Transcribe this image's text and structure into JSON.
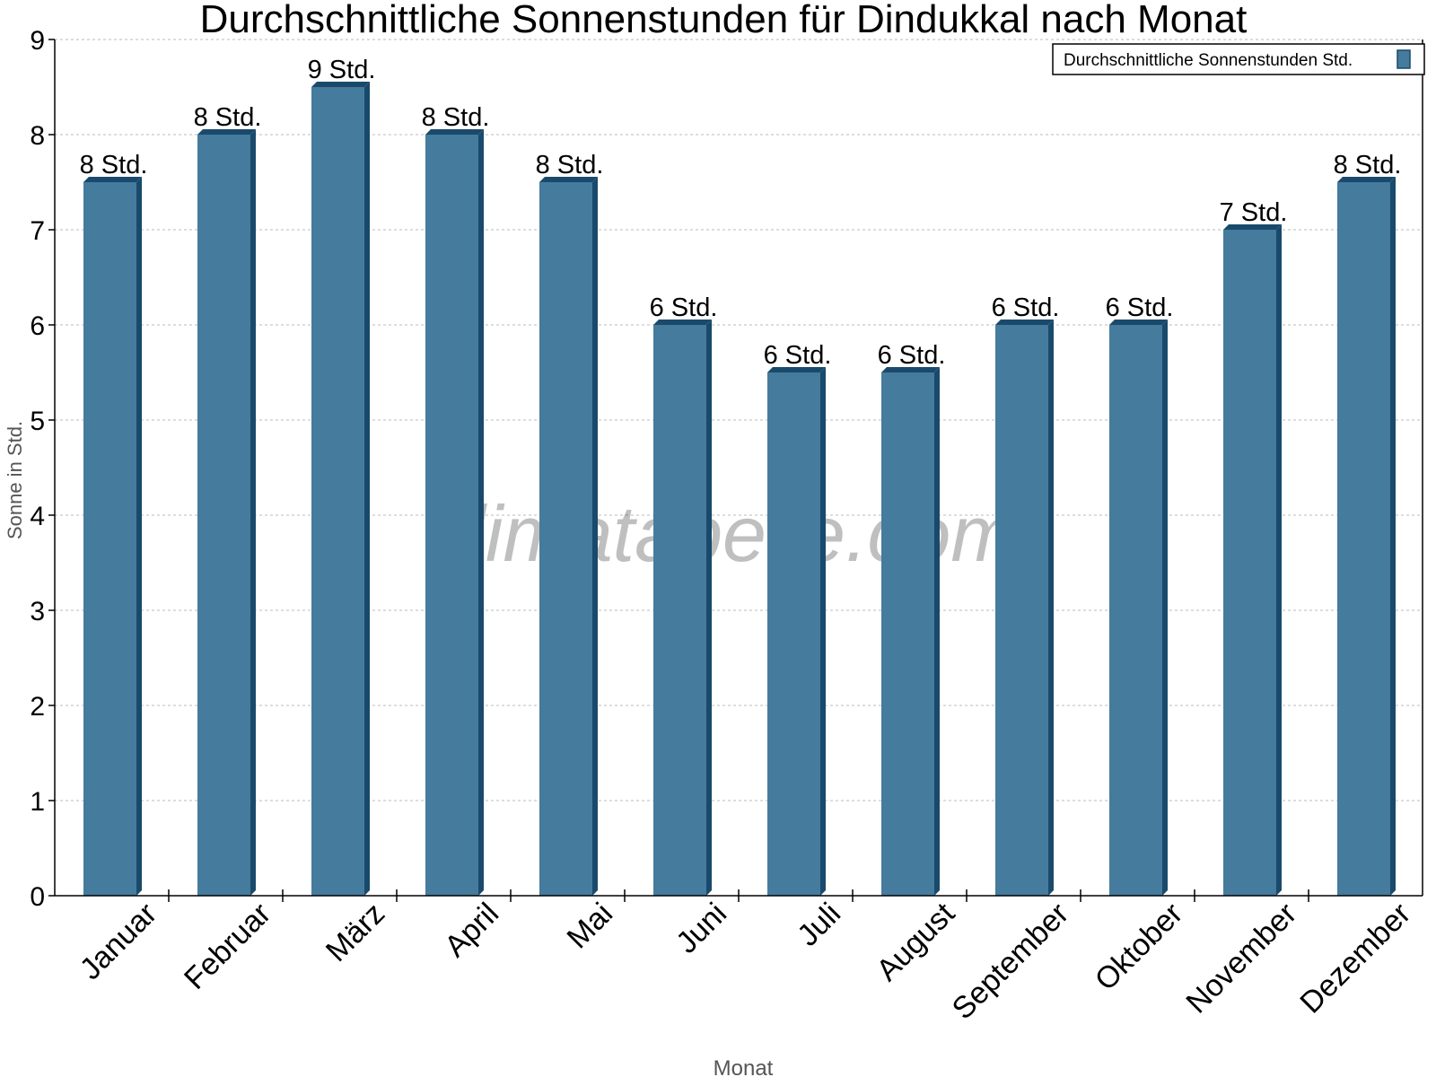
{
  "chart_data": {
    "type": "bar",
    "title": "Durchschnittliche Sonnenstunden für Dindukkal nach Monat",
    "xlabel": "Monat",
    "ylabel": "Sonne in Std.",
    "ylim": [
      0,
      9
    ],
    "yticks": [
      "0",
      "1",
      "2",
      "3",
      "4",
      "5",
      "6",
      "7",
      "8",
      "9"
    ],
    "grid": true,
    "legend_position": "top-right",
    "categories": [
      "Januar",
      "Februar",
      "März",
      "April",
      "Mai",
      "Juni",
      "Juli",
      "August",
      "September",
      "Oktober",
      "November",
      "Dezember"
    ],
    "series": [
      {
        "name": "Durchschnittliche Sonnenstunden Std.",
        "values": [
          7.5,
          8,
          8.5,
          8,
          7.5,
          6,
          5.5,
          5.5,
          6,
          6,
          7,
          7.5
        ],
        "labels": [
          "8 Std.",
          "8 Std.",
          "9 Std.",
          "8 Std.",
          "8 Std.",
          "6 Std.",
          "6 Std.",
          "6 Std.",
          "6 Std.",
          "6 Std.",
          "7 Std.",
          "8 Std."
        ]
      }
    ],
    "colors": {
      "bar": "#457b9d",
      "bar_dark": "#1a4a6b"
    },
    "watermark": "klimatabelle.com"
  }
}
